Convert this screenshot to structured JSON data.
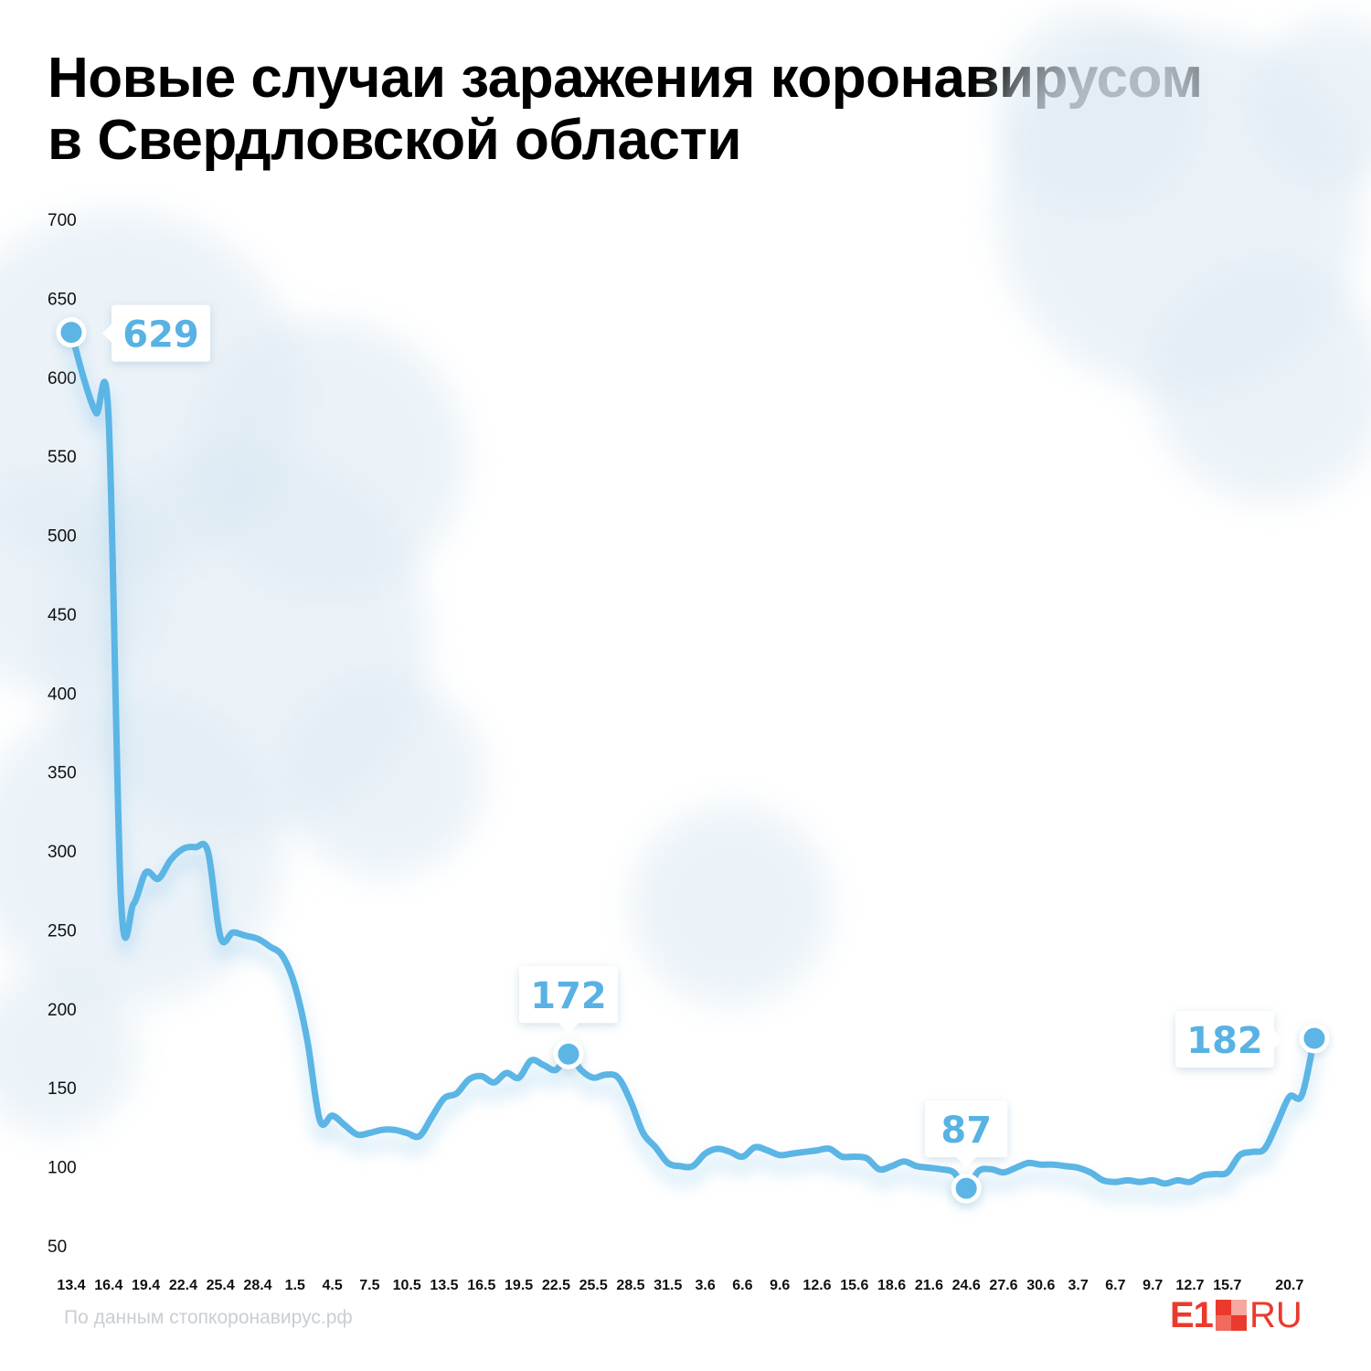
{
  "title": {
    "line1": "Новые случаи заражения коронавирусом",
    "line2": "в Свердловской области"
  },
  "source": "По данным стопкоронавирус.рф",
  "logo": {
    "e1": "E1",
    "ru": "RU",
    "color": "#ea3a2d"
  },
  "colors": {
    "line": "#5bb5e5",
    "callout_text": "#58b2e3",
    "axis_text": "#111111"
  },
  "chart_data": {
    "type": "line",
    "title": "Новые случаи заражения коронавирусом в Свердловской области",
    "xlabel": "",
    "ylabel": "",
    "ylim": [
      50,
      700
    ],
    "yticks": [
      50,
      100,
      150,
      200,
      250,
      300,
      350,
      400,
      450,
      500,
      550,
      600,
      650,
      700
    ],
    "xtick_labels": [
      "13.4",
      "16.4",
      "19.4",
      "22.4",
      "25.4",
      "28.4",
      "1.5",
      "4.5",
      "7.5",
      "10.5",
      "13.5",
      "16.5",
      "19.5",
      "22.5",
      "25.5",
      "28.5",
      "31.5",
      "3.6",
      "6.6",
      "9.6",
      "12.6",
      "15.6",
      "18.6",
      "21.6",
      "24.6",
      "27.6",
      "30.6",
      "3.7",
      "6.7",
      "9.7",
      "12.7",
      "15.7",
      "20.7"
    ],
    "xtick_days": [
      0,
      3,
      6,
      9,
      12,
      15,
      18,
      21,
      24,
      27,
      30,
      33,
      36,
      39,
      42,
      45,
      48,
      51,
      54,
      57,
      60,
      63,
      66,
      69,
      72,
      75,
      78,
      81,
      84,
      87,
      90,
      93,
      98
    ],
    "series": [
      {
        "name": "Новые случаи",
        "values": [
          629,
          600,
          578,
          575,
          270,
          267,
          287,
          283,
          295,
          302,
          303,
          300,
          246,
          249,
          247,
          245,
          240,
          234,
          215,
          180,
          130,
          133,
          127,
          121,
          122,
          124,
          124,
          122,
          120,
          132,
          144,
          147,
          156,
          158,
          154,
          160,
          157,
          168,
          165,
          162,
          172,
          162,
          157,
          159,
          157,
          142,
          122,
          113,
          103,
          101,
          101,
          109,
          112,
          110,
          107,
          113,
          111,
          108,
          109,
          110,
          111,
          112,
          107,
          107,
          106,
          99,
          101,
          104,
          101,
          100,
          99,
          97,
          87,
          98,
          99,
          97,
          100,
          103,
          102,
          102,
          101,
          100,
          97,
          92,
          91,
          92,
          91,
          92,
          90,
          92,
          91,
          95,
          96,
          97,
          108,
          110,
          112,
          128,
          145,
          146,
          182
        ]
      }
    ],
    "annotations": [
      {
        "label": "629",
        "index": 0,
        "value": 629,
        "callout": "right"
      },
      {
        "label": "172",
        "index": 40,
        "value": 172,
        "callout": "above"
      },
      {
        "label": "87",
        "index": 72,
        "value": 87,
        "callout": "above"
      },
      {
        "label": "182",
        "index": 100,
        "value": 182,
        "callout": "left"
      }
    ]
  }
}
